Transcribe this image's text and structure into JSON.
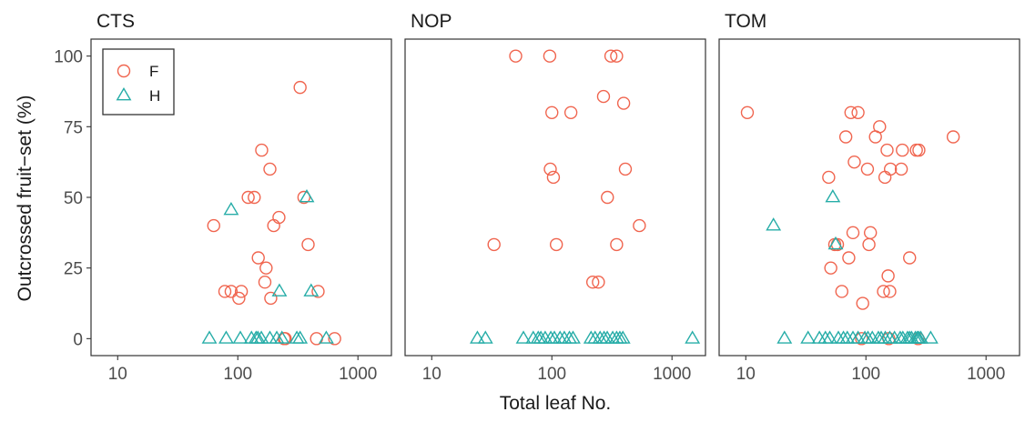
{
  "chart_data": {
    "type": "scatter",
    "xlabel": "Total leaf No.",
    "ylabel": "Outcrossed fruit−set (%)",
    "x_scale": "log10",
    "xlim": [
      6,
      1900
    ],
    "ylim": [
      -6,
      106
    ],
    "x_ticks": [
      10,
      100,
      1000
    ],
    "x_tick_labels": [
      "10",
      "100",
      "1000"
    ],
    "y_ticks": [
      0,
      25,
      50,
      75,
      100
    ],
    "y_tick_labels": [
      "0",
      "25",
      "50",
      "75",
      "100"
    ],
    "grid": false,
    "legend": {
      "position": "top-left",
      "entries": [
        {
          "label": "F",
          "marker": "circle",
          "color": "#F0654F"
        },
        {
          "label": "H",
          "marker": "triangle",
          "color": "#27ADA8"
        }
      ]
    },
    "panels": [
      {
        "title": "CTS",
        "series": [
          {
            "name": "F",
            "points": [
              [
                63,
                40
              ],
              [
                78,
                16.7
              ],
              [
                88,
                16.7
              ],
              [
                102,
                14.3
              ],
              [
                107,
                16.7
              ],
              [
                122,
                50
              ],
              [
                137,
                50
              ],
              [
                148,
                28.6
              ],
              [
                158,
                66.7
              ],
              [
                168,
                20
              ],
              [
                172,
                25
              ],
              [
                185,
                60
              ],
              [
                188,
                14.3
              ],
              [
                199,
                40
              ],
              [
                220,
                42.9
              ],
              [
                243,
                0
              ],
              [
                248,
                0
              ],
              [
                330,
                88.9
              ],
              [
                355,
                50
              ],
              [
                385,
                33.3
              ],
              [
                452,
                0
              ],
              [
                466,
                16.7
              ],
              [
                640,
                0
              ]
            ]
          },
          {
            "name": "H",
            "points": [
              [
                58,
                0
              ],
              [
                80,
                0
              ],
              [
                88,
                45.5
              ],
              [
                105,
                0
              ],
              [
                130,
                0
              ],
              [
                142,
                0
              ],
              [
                147,
                0
              ],
              [
                157,
                0
              ],
              [
                185,
                0
              ],
              [
                211,
                0
              ],
              [
                222,
                16.7
              ],
              [
                233,
                0
              ],
              [
                310,
                0
              ],
              [
                330,
                0
              ],
              [
                375,
                50
              ],
              [
                408,
                16.7
              ],
              [
                545,
                0
              ]
            ]
          }
        ]
      },
      {
        "title": "NOP",
        "series": [
          {
            "name": "F",
            "points": [
              [
                33,
                33.3
              ],
              [
                50,
                100
              ],
              [
                96,
                100
              ],
              [
                97,
                60
              ],
              [
                100,
                80
              ],
              [
                103,
                57.1
              ],
              [
                109,
                33.3
              ],
              [
                144,
                80
              ],
              [
                219,
                20
              ],
              [
                244,
                20
              ],
              [
                269,
                85.7
              ],
              [
                290,
                50
              ],
              [
                310,
                100
              ],
              [
                346,
                100
              ],
              [
                346,
                33.3
              ],
              [
                396,
                83.3
              ],
              [
                409,
                60
              ],
              [
                535,
                40
              ]
            ]
          },
          {
            "name": "H",
            "points": [
              [
                24,
                0
              ],
              [
                28,
                0
              ],
              [
                58,
                0
              ],
              [
                70,
                0
              ],
              [
                77,
                0
              ],
              [
                81,
                0
              ],
              [
                88,
                0
              ],
              [
                98,
                0
              ],
              [
                105,
                0
              ],
              [
                117,
                0
              ],
              [
                127,
                0
              ],
              [
                140,
                0
              ],
              [
                150,
                0
              ],
              [
                212,
                0
              ],
              [
                229,
                0
              ],
              [
                252,
                0
              ],
              [
                272,
                0
              ],
              [
                289,
                0
              ],
              [
                321,
                0
              ],
              [
                346,
                0
              ],
              [
                368,
                0
              ],
              [
                390,
                0
              ],
              [
                1480,
                0
              ]
            ]
          }
        ]
      },
      {
        "title": "TOM",
        "series": [
          {
            "name": "F",
            "points": [
              [
                10.3,
                80
              ],
              [
                49,
                57.1
              ],
              [
                51,
                25
              ],
              [
                55,
                33.3
              ],
              [
                58,
                33.3
              ],
              [
                63,
                16.7
              ],
              [
                68,
                71.4
              ],
              [
                72,
                28.6
              ],
              [
                75,
                80
              ],
              [
                78,
                37.5
              ],
              [
                80,
                62.5
              ],
              [
                86,
                80
              ],
              [
                94,
                12.5
              ],
              [
                103,
                60
              ],
              [
                106,
                33.3
              ],
              [
                109,
                37.5
              ],
              [
                120,
                71.4
              ],
              [
                130,
                75
              ],
              [
                140,
                16.7
              ],
              [
                144,
                57.1
              ],
              [
                150,
                66.7
              ],
              [
                153,
                22.2
              ],
              [
                158,
                16.7
              ],
              [
                160,
                60
              ],
              [
                197,
                60
              ],
              [
                201,
                66.7
              ],
              [
                231,
                28.6
              ],
              [
                263,
                66.7
              ],
              [
                276,
                66.7
              ],
              [
                533,
                71.4
              ],
              [
                92,
                0
              ],
              [
                155,
                0
              ],
              [
                272,
                0
              ]
            ]
          },
          {
            "name": "H",
            "points": [
              [
                17,
                40
              ],
              [
                21,
                0
              ],
              [
                33,
                0
              ],
              [
                41,
                0
              ],
              [
                46,
                0
              ],
              [
                50,
                0
              ],
              [
                53,
                50
              ],
              [
                56,
                33.3
              ],
              [
                59,
                0
              ],
              [
                65,
                0
              ],
              [
                70,
                0
              ],
              [
                78,
                0
              ],
              [
                86,
                0
              ],
              [
                98,
                0
              ],
              [
                104,
                0
              ],
              [
                113,
                0
              ],
              [
                127,
                0
              ],
              [
                134,
                0
              ],
              [
                145,
                0
              ],
              [
                158,
                0
              ],
              [
                173,
                0
              ],
              [
                193,
                0
              ],
              [
                203,
                0
              ],
              [
                222,
                0
              ],
              [
                231,
                0
              ],
              [
                240,
                0
              ],
              [
                258,
                0
              ],
              [
                268,
                0
              ],
              [
                275,
                0
              ],
              [
                286,
                0
              ],
              [
                346,
                0
              ]
            ]
          }
        ]
      }
    ]
  }
}
